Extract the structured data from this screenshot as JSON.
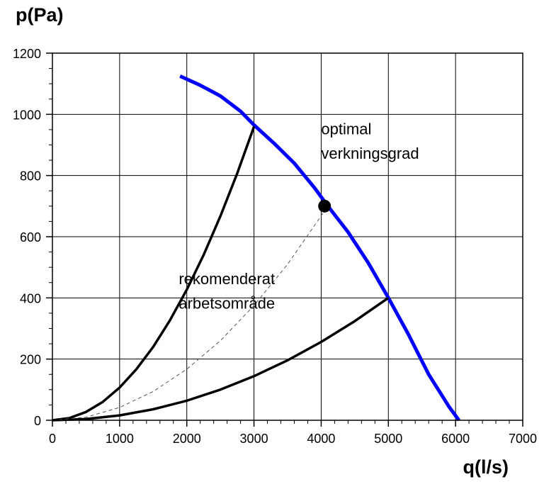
{
  "chart_data": {
    "type": "line",
    "title": "",
    "xlabel": "q(l/s)",
    "ylabel": "p(Pa)",
    "xlim": [
      0,
      7000
    ],
    "ylim": [
      0,
      1200
    ],
    "x_ticks": [
      0,
      1000,
      2000,
      3000,
      4000,
      5000,
      6000,
      7000
    ],
    "y_ticks": [
      0,
      200,
      400,
      600,
      800,
      1000,
      1200
    ],
    "grid": true,
    "series": [
      {
        "style": "blue-thick",
        "color": "#0000ff",
        "x": [
          1900,
          2200,
          2500,
          2800,
          3000,
          3300,
          3600,
          3900,
          4100,
          4400,
          4700,
          5000,
          5300,
          5600,
          5900,
          6050
        ],
        "y": [
          1125,
          1095,
          1060,
          1010,
          965,
          905,
          840,
          760,
          700,
          615,
          515,
          400,
          280,
          150,
          45,
          0
        ]
      },
      {
        "style": "black-thick",
        "color": "#000000",
        "x": [
          0,
          250,
          500,
          750,
          1000,
          1250,
          1500,
          1750,
          2000,
          2250,
          2500,
          2750,
          3000
        ],
        "y": [
          0,
          7,
          27,
          60,
          107,
          167,
          240,
          327,
          427,
          540,
          667,
          807,
          960
        ]
      },
      {
        "style": "black-thick",
        "color": "#000000",
        "x": [
          0,
          500,
          1000,
          1500,
          2000,
          2500,
          3000,
          3500,
          4000,
          4500,
          5000
        ],
        "y": [
          0,
          4,
          16,
          36,
          64,
          100,
          144,
          196,
          256,
          324,
          400
        ]
      },
      {
        "style": "dashed-thin",
        "color": "#555555",
        "x": [
          0,
          500,
          1000,
          1500,
          2000,
          2500,
          3000,
          3500,
          4100
        ],
        "y": [
          0,
          10,
          42,
          94,
          167,
          260,
          375,
          510,
          700
        ]
      }
    ],
    "points": [
      {
        "x": 4050,
        "y": 700,
        "color": "#000000"
      }
    ],
    "annotations": [
      {
        "text": "optimal",
        "x": 4000,
        "y": 935
      },
      {
        "text": "verkningsgrad",
        "x": 4000,
        "y": 855
      },
      {
        "text": "rekomenderat",
        "x": 1880,
        "y": 445
      },
      {
        "text": "arbetsområde",
        "x": 1880,
        "y": 365
      }
    ]
  }
}
